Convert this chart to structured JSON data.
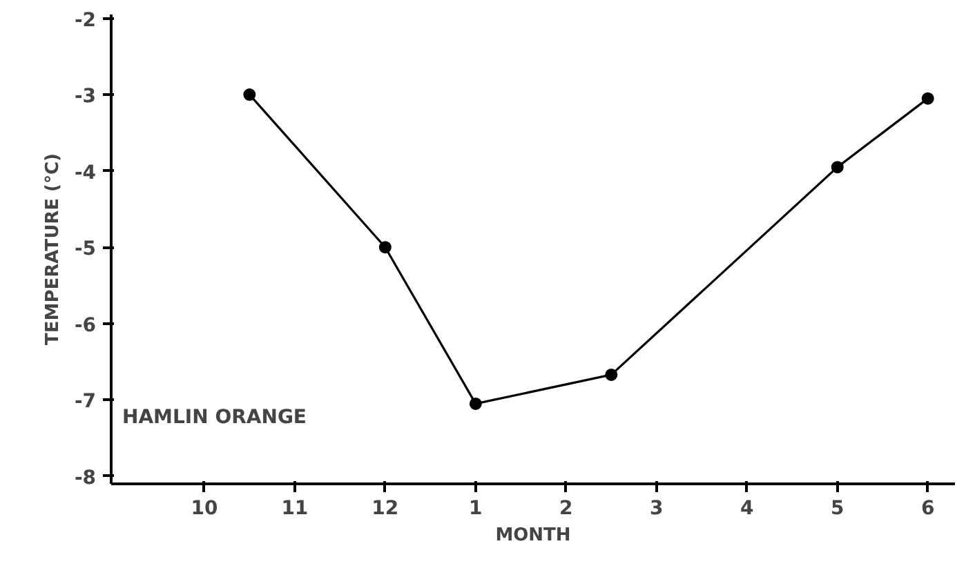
{
  "chart_data": {
    "type": "line",
    "xlabel": "MONTH",
    "ylabel": "TEMPERATURE (°C)",
    "annotations": [
      "HAMLIN ORANGE"
    ],
    "categories": [
      "10",
      null,
      "11",
      null,
      "12",
      null,
      "1",
      null,
      "2",
      null,
      "3",
      null,
      "4",
      null,
      "5",
      null,
      "6"
    ],
    "series": [
      {
        "color": "#000000",
        "values": [
          null,
          -3.0,
          null,
          null,
          -5.0,
          null,
          -7.05,
          null,
          null,
          -6.67,
          null,
          null,
          null,
          null,
          -3.95,
          null,
          -3.05
        ]
      }
    ],
    "ylim": [
      -8.1,
      -1.95
    ],
    "yticks": [
      -2,
      -3,
      -4,
      -5,
      -6,
      -7,
      -8
    ],
    "marker": "circle",
    "line_style": "solid",
    "grid": false
  }
}
